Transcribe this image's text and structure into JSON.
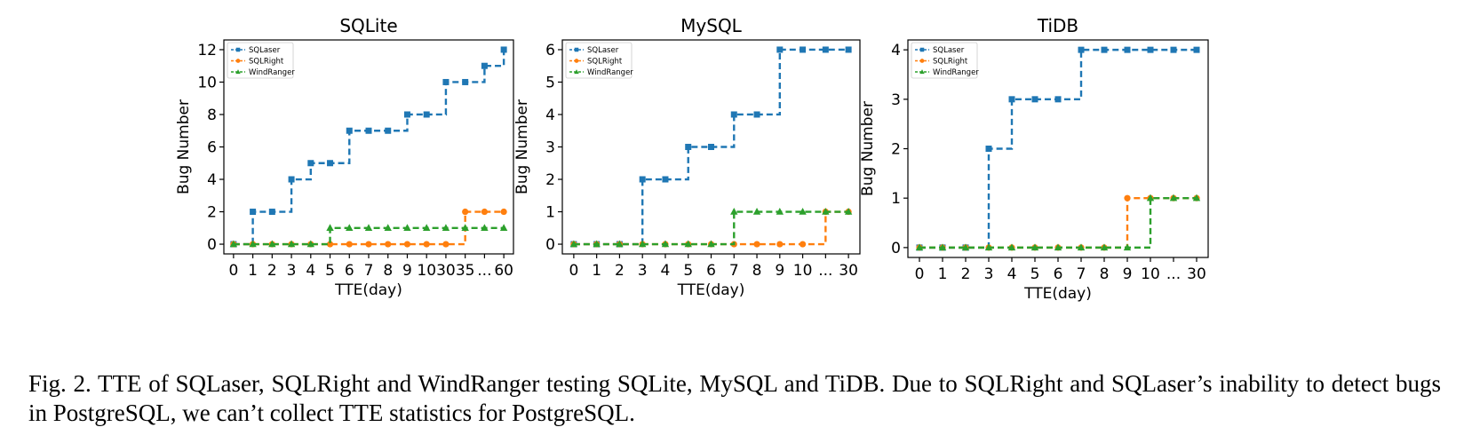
{
  "caption": "Fig. 2. TTE of SQLaser, SQLRight and WindRanger testing SQLite, MySQL and TiDB. Due to SQLRight and SQLaser’s inability to detect bugs in PostgreSQL, we can’t collect TTE statistics for PostgreSQL.",
  "colors": {
    "SQLaser": "#1f77b4",
    "SQLRight": "#ff7f0e",
    "WindRanger": "#2ca02c"
  },
  "markers": {
    "SQLaser": "square",
    "SQLRight": "circle",
    "WindRanger": "triangle"
  },
  "chart_data": [
    {
      "type": "line",
      "step": "post",
      "linestyle": "dashed",
      "title": "SQLite",
      "xlabel": "TTE(day)",
      "ylabel": "Bug Number",
      "x": [
        "0",
        "1",
        "2",
        "3",
        "4",
        "5",
        "6",
        "7",
        "8",
        "9",
        "10",
        "30",
        "35",
        "...",
        "60"
      ],
      "yticks": [
        0,
        2,
        4,
        6,
        8,
        10,
        12
      ],
      "ylim": [
        -0.6,
        12.6
      ],
      "grid": false,
      "legend": "top-left",
      "series": [
        {
          "name": "SQLaser",
          "values": [
            0,
            2,
            2,
            4,
            5,
            5,
            7,
            7,
            7,
            8,
            8,
            10,
            10,
            11,
            12
          ]
        },
        {
          "name": "SQLRight",
          "values": [
            0,
            0,
            0,
            0,
            0,
            0,
            0,
            0,
            0,
            0,
            0,
            0,
            2,
            2,
            2
          ]
        },
        {
          "name": "WindRanger",
          "values": [
            0,
            0,
            0,
            0,
            0,
            1,
            1,
            1,
            1,
            1,
            1,
            1,
            1,
            1,
            1
          ]
        }
      ]
    },
    {
      "type": "line",
      "step": "post",
      "linestyle": "dashed",
      "title": "MySQL",
      "xlabel": "TTE(day)",
      "ylabel": "Bug Number",
      "x": [
        "0",
        "1",
        "2",
        "3",
        "4",
        "5",
        "6",
        "7",
        "8",
        "9",
        "10",
        "...",
        "30"
      ],
      "yticks": [
        0,
        1,
        2,
        3,
        4,
        5,
        6
      ],
      "ylim": [
        -0.3,
        6.3
      ],
      "grid": false,
      "legend": "top-left",
      "series": [
        {
          "name": "SQLaser",
          "values": [
            0,
            0,
            0,
            2,
            2,
            3,
            3,
            4,
            4,
            6,
            6,
            6,
            6
          ]
        },
        {
          "name": "SQLRight",
          "values": [
            0,
            0,
            0,
            0,
            0,
            0,
            0,
            0,
            0,
            0,
            0,
            1,
            1
          ]
        },
        {
          "name": "WindRanger",
          "values": [
            0,
            0,
            0,
            0,
            0,
            0,
            0,
            1,
            1,
            1,
            1,
            1,
            1
          ]
        }
      ]
    },
    {
      "type": "line",
      "step": "post",
      "linestyle": "dashed",
      "title": "TiDB",
      "xlabel": "TTE(day)",
      "ylabel": "Bug Number",
      "x": [
        "0",
        "1",
        "2",
        "3",
        "4",
        "5",
        "6",
        "7",
        "8",
        "9",
        "10",
        "...",
        "30"
      ],
      "yticks": [
        0,
        1,
        2,
        3,
        4
      ],
      "ylim": [
        -0.2,
        4.2
      ],
      "grid": false,
      "legend": "top-left",
      "series": [
        {
          "name": "SQLaser",
          "values": [
            0,
            0,
            0,
            2,
            3,
            3,
            3,
            4,
            4,
            4,
            4,
            4,
            4
          ]
        },
        {
          "name": "SQLRight",
          "values": [
            0,
            0,
            0,
            0,
            0,
            0,
            0,
            0,
            0,
            1,
            1,
            1,
            1
          ]
        },
        {
          "name": "WindRanger",
          "values": [
            0,
            0,
            0,
            0,
            0,
            0,
            0,
            0,
            0,
            0,
            1,
            1,
            1
          ]
        }
      ]
    }
  ]
}
